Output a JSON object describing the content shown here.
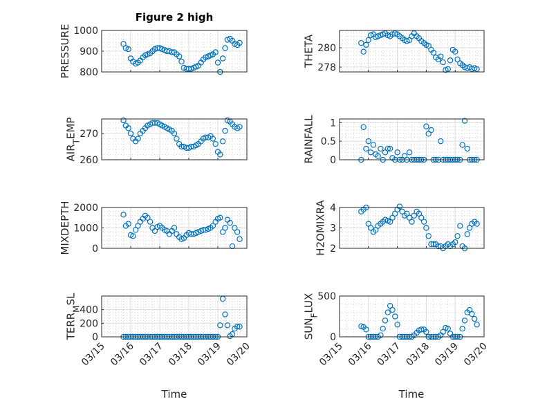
{
  "chart_data": {
    "type": "scatter",
    "title": "Figure 2 high",
    "xlabel": "Time",
    "x_unit": "days after 03/15 00:00",
    "xlim": [
      0,
      5
    ],
    "xticks": [
      0,
      1,
      2,
      3,
      4,
      5
    ],
    "xtick_labels": [
      "03/15",
      "03/16",
      "03/17",
      "03/18",
      "03/19",
      "03/20"
    ],
    "grid": "major and minor",
    "marker_color": "#0072BD",
    "x": [
      0.75,
      0.83,
      0.92,
      1.0,
      1.08,
      1.17,
      1.25,
      1.33,
      1.42,
      1.5,
      1.58,
      1.67,
      1.75,
      1.83,
      1.92,
      2.0,
      2.08,
      2.17,
      2.25,
      2.33,
      2.42,
      2.5,
      2.58,
      2.67,
      2.75,
      2.83,
      2.92,
      3.0,
      3.08,
      3.17,
      3.25,
      3.33,
      3.42,
      3.5,
      3.58,
      3.67,
      3.75,
      3.83,
      3.92,
      4.0,
      4.08,
      4.17,
      4.25,
      4.33,
      4.42,
      4.5,
      4.58,
      4.67,
      4.75
    ],
    "panels": [
      {
        "name": "PRESSURE",
        "ylabel": [
          "PRESSURE"
        ],
        "ylim": [
          800,
          1000
        ],
        "yticks": [
          800,
          900,
          1000
        ],
        "ytick_labels": [
          "800",
          "900",
          "1000"
        ],
        "values": [
          935,
          915,
          910,
          865,
          850,
          840,
          845,
          855,
          870,
          880,
          885,
          890,
          900,
          910,
          915,
          915,
          910,
          905,
          900,
          900,
          895,
          895,
          885,
          875,
          850,
          820,
          815,
          815,
          815,
          820,
          825,
          830,
          845,
          860,
          870,
          875,
          880,
          885,
          895,
          845,
          800,
          865,
          915,
          955,
          960,
          950,
          935,
          930,
          940
        ]
      },
      {
        "name": "THETA",
        "ylabel": [
          "THETA"
        ],
        "ylim": [
          277.5,
          281.8
        ],
        "yticks": [
          278,
          280
        ],
        "ytick_labels": [
          "278",
          "280"
        ],
        "values": [
          280.5,
          279.6,
          280.3,
          280.8,
          281.3,
          281.4,
          281.1,
          281.2,
          281.3,
          281.4,
          281.5,
          281.3,
          281.2,
          281.4,
          281.5,
          281.4,
          281.2,
          281.0,
          280.8,
          280.7,
          280.8,
          281.2,
          281.5,
          281.2,
          281.0,
          280.7,
          280.5,
          280.3,
          280.2,
          279.8,
          279.5,
          279.0,
          278.8,
          279.1,
          278.5,
          277.7,
          277.8,
          278.7,
          279.8,
          279.6,
          278.8,
          278.4,
          278.2,
          278.0,
          277.9,
          278.0,
          277.8,
          277.9,
          277.8
        ]
      },
      {
        "name": "AIR_TEMP",
        "ylabel": [
          "AIR",
          "T",
          "EMP"
        ],
        "ylim": [
          260,
          275.5
        ],
        "yticks": [
          260,
          270
        ],
        "ytick_labels": [
          "260",
          "270"
        ],
        "values": [
          275,
          273,
          272,
          270,
          268,
          267,
          268,
          270,
          271,
          272,
          273,
          273.5,
          274,
          274,
          274,
          273.5,
          273,
          272.5,
          272,
          271.5,
          271,
          270,
          268,
          266,
          265,
          265,
          264.5,
          264.5,
          265,
          265,
          265.5,
          266,
          267,
          268,
          268.5,
          268.5,
          269,
          268,
          266,
          263,
          262,
          267,
          271,
          275,
          274.5,
          273.5,
          272.5,
          272,
          272.5
        ]
      },
      {
        "name": "RAINFALL",
        "ylabel": [
          "RAINFALL"
        ],
        "ylim": [
          0,
          1.1
        ],
        "yticks": [
          0,
          0.5,
          1
        ],
        "ytick_labels": [
          "0",
          "0.5",
          "1"
        ],
        "values": [
          0,
          0.88,
          0.3,
          0.5,
          0.2,
          0.4,
          0.15,
          0.1,
          0.3,
          0,
          0.2,
          0.3,
          0.3,
          0.05,
          0,
          0.2,
          0,
          0,
          0.1,
          0,
          0.2,
          0,
          0,
          0,
          0,
          0,
          0,
          0.9,
          0.7,
          0.8,
          0,
          0,
          0,
          0.5,
          0,
          0,
          0,
          0,
          0,
          0,
          0,
          0,
          0.4,
          1.05,
          0.3,
          0,
          0,
          0,
          0
        ]
      },
      {
        "name": "MIXDEPTH",
        "ylabel": [
          "MIXDEPTH"
        ],
        "ylim": [
          0,
          2000
        ],
        "yticks": [
          0,
          1000,
          2000
        ],
        "ytick_labels": [
          "0",
          "1000",
          "2000"
        ],
        "values": [
          1650,
          1100,
          1200,
          650,
          600,
          900,
          1100,
          1300,
          1450,
          1600,
          1500,
          1300,
          1000,
          850,
          1050,
          1100,
          1000,
          900,
          850,
          700,
          850,
          1000,
          700,
          550,
          450,
          500,
          650,
          750,
          700,
          700,
          750,
          800,
          850,
          900,
          900,
          950,
          1000,
          1100,
          1300,
          1450,
          1500,
          800,
          1000,
          1400,
          1250,
          100,
          1000,
          800,
          450
        ]
      },
      {
        "name": "H2OMIXRA",
        "ylabel": [
          "H2OMIXRA"
        ],
        "ylim": [
          2,
          4
        ],
        "yticks": [
          2,
          3,
          4
        ],
        "ytick_labels": [
          "2",
          "3",
          "4"
        ],
        "values": [
          3.8,
          3.9,
          4.0,
          3.2,
          3.0,
          2.8,
          2.9,
          3.1,
          3.2,
          3.3,
          3.4,
          3.35,
          3.3,
          3.5,
          3.7,
          3.9,
          4.05,
          3.8,
          3.6,
          3.7,
          3.5,
          3.3,
          3.6,
          3.8,
          3.7,
          3.5,
          3.3,
          3.0,
          2.6,
          2.2,
          2.2,
          2.2,
          2.1,
          2.1,
          2.0,
          2.1,
          2.2,
          2.1,
          2.2,
          2.3,
          2.6,
          3.1,
          2.1,
          2.0,
          2.7,
          3.0,
          3.2,
          3.3,
          3.2
        ]
      },
      {
        "name": "TERR_MSL",
        "ylabel": [
          "TERR",
          "M",
          "SL"
        ],
        "ylim": [
          0,
          600
        ],
        "yticks": [
          0,
          200,
          400
        ],
        "ytick_labels": [
          "0",
          "200",
          "400"
        ],
        "values": [
          0,
          0,
          0,
          0,
          0,
          0,
          0,
          0,
          0,
          0,
          0,
          0,
          0,
          0,
          0,
          0,
          0,
          0,
          0,
          0,
          0,
          0,
          0,
          0,
          0,
          0,
          0,
          0,
          0,
          0,
          0,
          0,
          0,
          0,
          0,
          0,
          0,
          0,
          0,
          0,
          170,
          560,
          330,
          170,
          10,
          40,
          120,
          150,
          150
        ]
      },
      {
        "name": "SUN_FLUX",
        "ylabel": [
          "SUN",
          "F",
          "LUX"
        ],
        "ylim": [
          0,
          500
        ],
        "yticks": [
          0,
          500
        ],
        "ytick_labels": [
          "0",
          "500"
        ],
        "values": [
          130,
          120,
          90,
          0,
          0,
          0,
          0,
          0,
          20,
          100,
          200,
          300,
          380,
          330,
          250,
          150,
          0,
          0,
          0,
          0,
          0,
          0,
          20,
          50,
          80,
          90,
          90,
          60,
          0,
          0,
          0,
          0,
          0,
          20,
          60,
          110,
          100,
          40,
          0,
          0,
          0,
          0,
          100,
          200,
          300,
          330,
          280,
          220,
          150
        ]
      }
    ]
  }
}
